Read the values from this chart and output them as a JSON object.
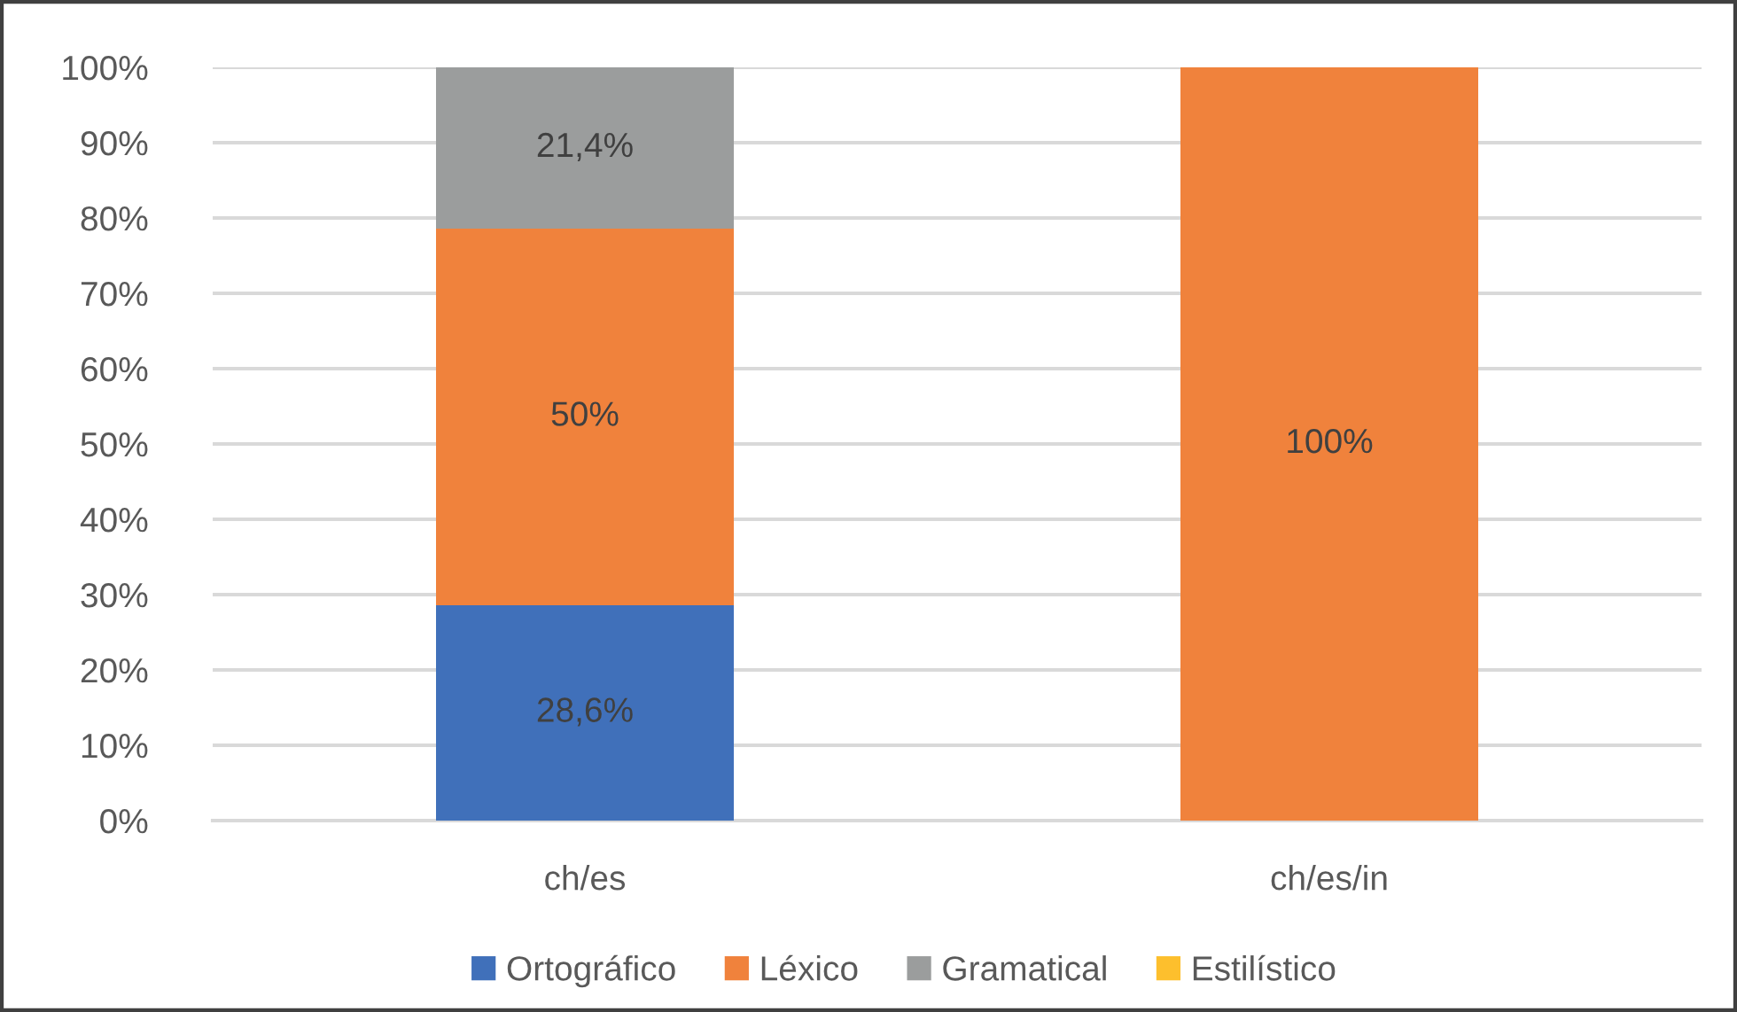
{
  "chart_data": {
    "type": "bar",
    "stacked": true,
    "categories": [
      "ch/es",
      "ch/es/in"
    ],
    "series": [
      {
        "name": "Ortográfico",
        "color": "#4070ba",
        "values": [
          28.6,
          0
        ],
        "value_labels": [
          "28,6%",
          null
        ]
      },
      {
        "name": "Léxico",
        "color": "#f0823c",
        "values": [
          50,
          100
        ],
        "value_labels": [
          "50%",
          "100%"
        ]
      },
      {
        "name": "Gramatical",
        "color": "#9b9d9d",
        "values": [
          21.4,
          0
        ],
        "value_labels": [
          "21,4%",
          null
        ]
      },
      {
        "name": "Estilístico",
        "color": "#fdbf2d",
        "values": [
          0,
          0
        ],
        "value_labels": [
          null,
          null
        ]
      }
    ],
    "ylim": [
      0,
      100
    ],
    "yticks": [
      {
        "value": 0,
        "label": "0%"
      },
      {
        "value": 10,
        "label": "10%"
      },
      {
        "value": 20,
        "label": "20%"
      },
      {
        "value": 30,
        "label": "30%"
      },
      {
        "value": 40,
        "label": "40%"
      },
      {
        "value": 50,
        "label": "50%"
      },
      {
        "value": 60,
        "label": "60%"
      },
      {
        "value": 70,
        "label": "70%"
      },
      {
        "value": 80,
        "label": "80%"
      },
      {
        "value": 90,
        "label": "90%"
      },
      {
        "value": 100,
        "label": "100%"
      }
    ],
    "grid": "y",
    "legend": "bottom"
  }
}
